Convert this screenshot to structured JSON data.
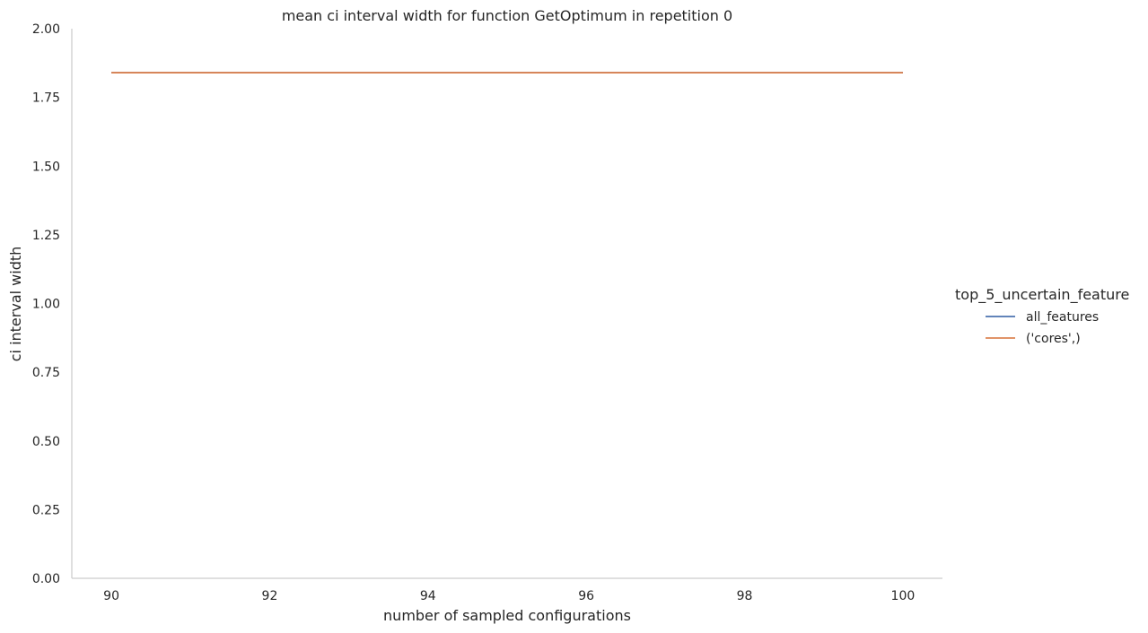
{
  "chart_data": {
    "type": "line",
    "title": "mean ci interval width for function GetOptimum in repetition 0",
    "xlabel": "number of sampled configurations",
    "ylabel": "ci interval width",
    "xlim": [
      89.5,
      100.5
    ],
    "ylim": [
      0,
      2
    ],
    "xticks": [
      90,
      92,
      94,
      96,
      98,
      100
    ],
    "xtick_labels": [
      "90",
      "92",
      "94",
      "96",
      "98",
      "100"
    ],
    "yticks": [
      0,
      0.25,
      0.5,
      0.75,
      1.0,
      1.25,
      1.5,
      1.75,
      2.0
    ],
    "ytick_labels": [
      "0.00",
      "0.25",
      "0.50",
      "0.75",
      "1.00",
      "1.25",
      "1.50",
      "1.75",
      "2.00"
    ],
    "grid": false,
    "legend": {
      "title": "top_5_uncertain_feature",
      "placement": "right",
      "entries": [
        "all_features",
        "('cores',)"
      ]
    },
    "series": [
      {
        "name": "all_features",
        "color": "#4c72b0",
        "x": [
          90,
          100
        ],
        "y": [
          1.84,
          1.84
        ]
      },
      {
        "name": "('cores',)",
        "color": "#dd8452",
        "x": [
          90,
          100
        ],
        "y": [
          1.84,
          1.84
        ]
      }
    ]
  }
}
